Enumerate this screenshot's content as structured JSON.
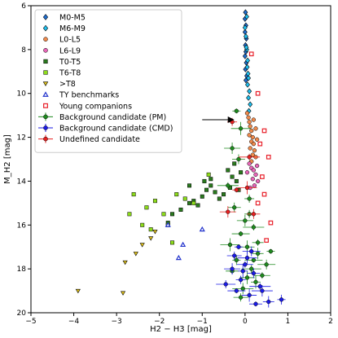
{
  "chart_data": {
    "type": "scatter",
    "title": "",
    "xlabel": "H2 − H3 [mag]",
    "ylabel": "M_H2 [mag]",
    "xlim": [
      -5,
      2
    ],
    "ylim": [
      20,
      6
    ],
    "y_inverted": true,
    "x_ticks": [
      -5,
      -4,
      -3,
      -2,
      -1,
      0,
      1,
      2
    ],
    "y_ticks": [
      6,
      8,
      10,
      12,
      14,
      16,
      18,
      20
    ],
    "x_tick_labels": [
      "−5",
      "−4",
      "−3",
      "−2",
      "−1",
      "0",
      "1",
      "2"
    ],
    "y_tick_labels": [
      "6",
      "8",
      "10",
      "12",
      "14",
      "16",
      "18",
      "20"
    ],
    "grid": false,
    "legend_placement": "top-left",
    "series": [
      {
        "name": "M0-M5",
        "marker": "diamond",
        "color": "#1f6fd1",
        "points": [
          [
            0.01,
            6.3
          ],
          [
            0.0,
            6.6
          ],
          [
            0.02,
            6.9
          ],
          [
            0.0,
            7.2
          ],
          [
            0.03,
            7.5
          ],
          [
            0.01,
            7.8
          ],
          [
            0.02,
            8.1
          ],
          [
            0.0,
            8.3
          ],
          [
            0.03,
            8.6
          ],
          [
            0.01,
            8.9
          ],
          [
            0.04,
            9.2
          ],
          [
            0.02,
            9.4
          ]
        ]
      },
      {
        "name": "M6-M9",
        "marker": "diamond",
        "color": "#1fc1f0",
        "points": [
          [
            0.0,
            7.0
          ],
          [
            0.02,
            7.4
          ],
          [
            0.04,
            8.0
          ],
          [
            0.06,
            8.5
          ],
          [
            0.05,
            8.8
          ],
          [
            0.08,
            9.3
          ],
          [
            0.06,
            9.6
          ],
          [
            0.1,
            9.9
          ],
          [
            0.08,
            10.2
          ],
          [
            0.12,
            10.5
          ],
          [
            0.09,
            10.8
          ],
          [
            0.04,
            6.5
          ],
          [
            0.03,
            7.9
          ],
          [
            0.07,
            9.1
          ]
        ]
      },
      {
        "name": "L0-L5",
        "marker": "circle",
        "color": "#f08a4c",
        "points": [
          [
            0.05,
            10.9
          ],
          [
            0.08,
            11.1
          ],
          [
            0.1,
            11.3
          ],
          [
            0.12,
            11.5
          ],
          [
            0.15,
            11.7
          ],
          [
            0.1,
            11.9
          ],
          [
            0.18,
            12.0
          ],
          [
            0.15,
            12.2
          ],
          [
            0.2,
            12.3
          ],
          [
            0.12,
            12.5
          ],
          [
            0.22,
            12.6
          ],
          [
            0.18,
            12.8
          ],
          [
            0.25,
            12.9
          ],
          [
            0.15,
            13.1
          ],
          [
            0.2,
            11.2
          ],
          [
            0.25,
            11.6
          ],
          [
            0.28,
            12.1
          ]
        ]
      },
      {
        "name": "L6-L9",
        "marker": "circle",
        "color": "#e866b8",
        "points": [
          [
            0.1,
            13.2
          ],
          [
            0.15,
            13.4
          ],
          [
            0.2,
            13.5
          ],
          [
            0.25,
            13.7
          ],
          [
            0.18,
            13.9
          ],
          [
            0.3,
            14.0
          ],
          [
            0.22,
            14.2
          ],
          [
            0.12,
            14.3
          ],
          [
            0.28,
            13.3
          ],
          [
            0.05,
            13.6
          ]
        ]
      },
      {
        "name": "T0-T5",
        "marker": "square",
        "color": "#2a7a1e",
        "points": [
          [
            -0.3,
            13.8
          ],
          [
            -0.2,
            14.0
          ],
          [
            -0.1,
            13.6
          ],
          [
            -0.35,
            14.3
          ],
          [
            -0.5,
            14.6
          ],
          [
            -0.6,
            14.8
          ],
          [
            -0.7,
            14.5
          ],
          [
            -0.8,
            14.2
          ],
          [
            -0.9,
            14.4
          ],
          [
            -1.0,
            14.7
          ],
          [
            -1.1,
            15.1
          ],
          [
            -1.3,
            15.0
          ],
          [
            -1.5,
            15.3
          ],
          [
            -1.7,
            15.5
          ],
          [
            -1.8,
            15.9
          ],
          [
            -1.3,
            14.2
          ],
          [
            -0.8,
            13.9
          ],
          [
            -0.4,
            13.5
          ],
          [
            -0.15,
            14.4
          ],
          [
            -0.25,
            13.2
          ],
          [
            -0.95,
            14.0
          ],
          [
            -1.2,
            14.9
          ]
        ]
      },
      {
        "name": "T6-T8",
        "marker": "square",
        "color": "#8ddc1a",
        "points": [
          [
            -2.3,
            15.2
          ],
          [
            -2.2,
            16.2
          ],
          [
            -2.7,
            15.5
          ],
          [
            -2.4,
            16.0
          ],
          [
            -2.1,
            14.9
          ],
          [
            -1.9,
            15.5
          ],
          [
            -1.8,
            16.0
          ],
          [
            -1.6,
            14.6
          ],
          [
            -1.4,
            14.8
          ],
          [
            -1.2,
            15.0
          ],
          [
            -0.85,
            13.7
          ],
          [
            -1.7,
            16.8
          ],
          [
            -2.6,
            14.6
          ]
        ]
      },
      {
        "name": ">T8",
        "marker": "triangle-down",
        "color": "#e1c21a",
        "points": [
          [
            -3.9,
            19.0
          ],
          [
            -2.85,
            19.1
          ],
          [
            -2.55,
            17.3
          ],
          [
            -2.4,
            16.9
          ],
          [
            -2.2,
            16.6
          ],
          [
            -2.1,
            16.3
          ],
          [
            -2.8,
            17.7
          ]
        ]
      },
      {
        "name": "TY benchmarks",
        "marker": "triangle-up",
        "color": "#2233cc",
        "points": [
          [
            -1.45,
            16.9
          ],
          [
            -1.55,
            17.5
          ],
          [
            -1.0,
            16.2
          ],
          [
            -1.8,
            16.0
          ]
        ]
      },
      {
        "name": "Young companions",
        "marker": "square-open",
        "color": "#e8202a",
        "points": [
          [
            0.4,
            13.8
          ],
          [
            0.45,
            14.6
          ],
          [
            0.3,
            15.0
          ],
          [
            0.5,
            16.7
          ],
          [
            0.35,
            12.3
          ],
          [
            0.45,
            11.7
          ],
          [
            0.3,
            10.0
          ],
          [
            0.15,
            8.2
          ],
          [
            0.6,
            15.9
          ],
          [
            0.55,
            12.9
          ]
        ]
      },
      {
        "name": "Background candidate (PM)",
        "marker": "circle",
        "color": "#1e8a1e",
        "points": [
          [
            -0.2,
            10.8
          ],
          [
            -0.1,
            11.6
          ],
          [
            -0.3,
            12.5
          ],
          [
            -0.15,
            13.0
          ],
          [
            0.1,
            15.5
          ],
          [
            0.2,
            16.1
          ],
          [
            -0.1,
            16.4
          ],
          [
            0.05,
            17.0
          ],
          [
            0.3,
            17.3
          ],
          [
            -0.2,
            17.6
          ],
          [
            0.15,
            18.0
          ],
          [
            0.4,
            18.3
          ],
          [
            -0.3,
            18.1
          ],
          [
            0.25,
            18.6
          ],
          [
            -0.05,
            18.9
          ],
          [
            0.5,
            17.8
          ],
          [
            -0.1,
            19.3
          ],
          [
            0.3,
            16.8
          ],
          [
            0.6,
            17.2
          ],
          [
            -0.35,
            16.9
          ],
          [
            0.0,
            15.8
          ],
          [
            -0.25,
            15.2
          ],
          [
            0.1,
            14.8
          ],
          [
            -0.4,
            14.2
          ],
          [
            0.2,
            17.6
          ],
          [
            0.05,
            18.4
          ]
        ]
      },
      {
        "name": "Background candidate (CMD)",
        "marker": "circle",
        "color": "#1a1ae6",
        "points": [
          [
            -0.15,
            17.0
          ],
          [
            0.05,
            17.5
          ],
          [
            -0.3,
            18.0
          ],
          [
            0.2,
            18.2
          ],
          [
            -0.1,
            18.5
          ],
          [
            0.35,
            18.8
          ],
          [
            -0.2,
            19.0
          ],
          [
            0.1,
            19.2
          ],
          [
            0.55,
            19.5
          ],
          [
            0.85,
            19.4
          ],
          [
            -0.45,
            18.7
          ],
          [
            0.0,
            17.8
          ],
          [
            0.25,
            19.6
          ],
          [
            -0.05,
            18.1
          ],
          [
            0.4,
            19.0
          ],
          [
            0.15,
            17.2
          ],
          [
            -0.25,
            17.4
          ]
        ]
      },
      {
        "name": "Undefined candidate",
        "marker": "circle",
        "color": "#e82020",
        "points": [
          [
            -0.2,
            14.4
          ],
          [
            0.05,
            14.3
          ],
          [
            -0.4,
            15.4
          ],
          [
            0.2,
            15.5
          ],
          [
            -0.3,
            11.3
          ],
          [
            0.1,
            12.9
          ]
        ]
      }
    ],
    "annotations": [
      {
        "type": "arrow",
        "from": [
          -1.0,
          11.2
        ],
        "to": [
          -0.25,
          11.2
        ]
      }
    ]
  }
}
